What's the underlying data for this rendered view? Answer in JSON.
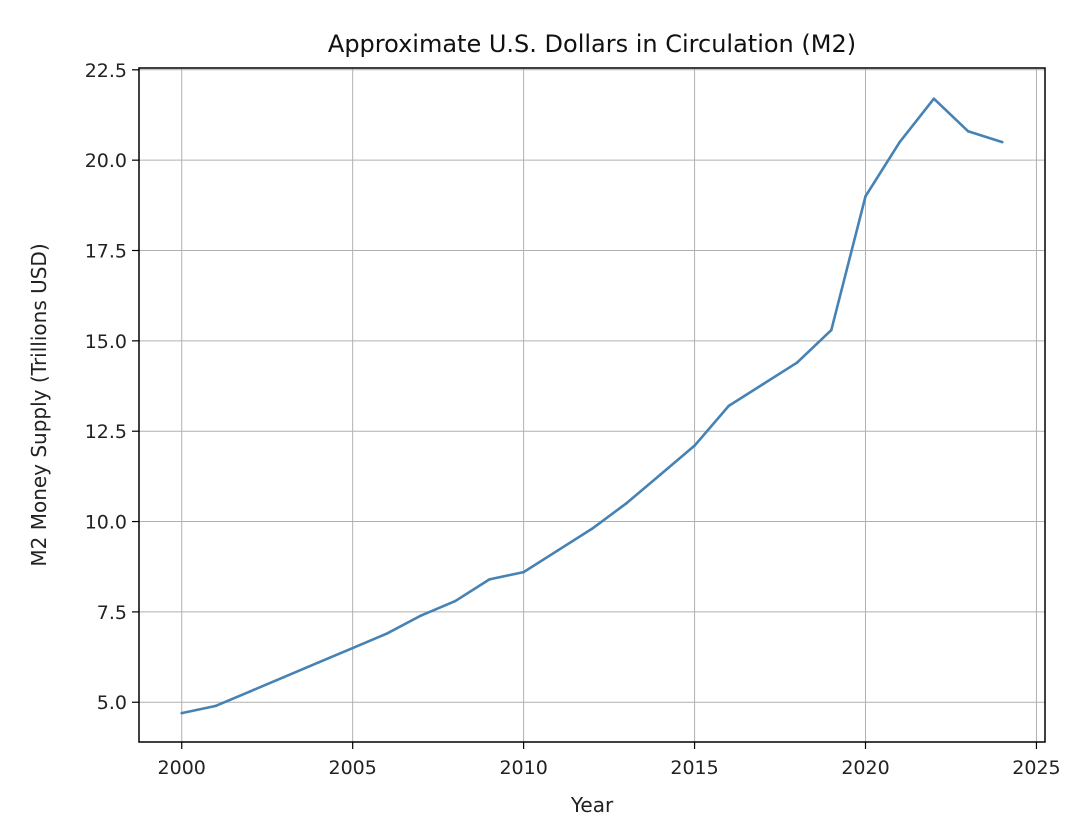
{
  "chart_data": {
    "type": "line",
    "title": "Approximate U.S. Dollars in Circulation (M2)",
    "xlabel": "Year",
    "ylabel": "M2 Money Supply (Trillions USD)",
    "xlim": [
      1998.75,
      2025.25
    ],
    "ylim": [
      3.9,
      22.55
    ],
    "grid": true,
    "x_ticks": [
      2000,
      2005,
      2010,
      2015,
      2020,
      2025
    ],
    "y_ticks": [
      5.0,
      7.5,
      10.0,
      12.5,
      15.0,
      17.5,
      20.0,
      22.5
    ],
    "x_tick_labels": [
      "2000",
      "2005",
      "2010",
      "2015",
      "2020",
      "2025"
    ],
    "y_tick_labels": [
      "5.0",
      "7.5",
      "10.0",
      "12.5",
      "15.0",
      "17.5",
      "20.0",
      "22.5"
    ],
    "series": [
      {
        "name": "M2",
        "color": "#4682b4",
        "x": [
          2000,
          2001,
          2002,
          2003,
          2004,
          2005,
          2006,
          2007,
          2008,
          2009,
          2010,
          2011,
          2012,
          2013,
          2014,
          2015,
          2016,
          2017,
          2018,
          2019,
          2020,
          2021,
          2022,
          2023,
          2024
        ],
        "y": [
          4.7,
          4.9,
          5.3,
          5.7,
          6.1,
          6.5,
          6.9,
          7.4,
          7.8,
          8.4,
          8.6,
          9.2,
          9.8,
          10.5,
          11.3,
          12.1,
          13.2,
          13.8,
          14.4,
          15.3,
          19.0,
          20.5,
          21.7,
          20.8,
          20.5
        ]
      }
    ]
  }
}
